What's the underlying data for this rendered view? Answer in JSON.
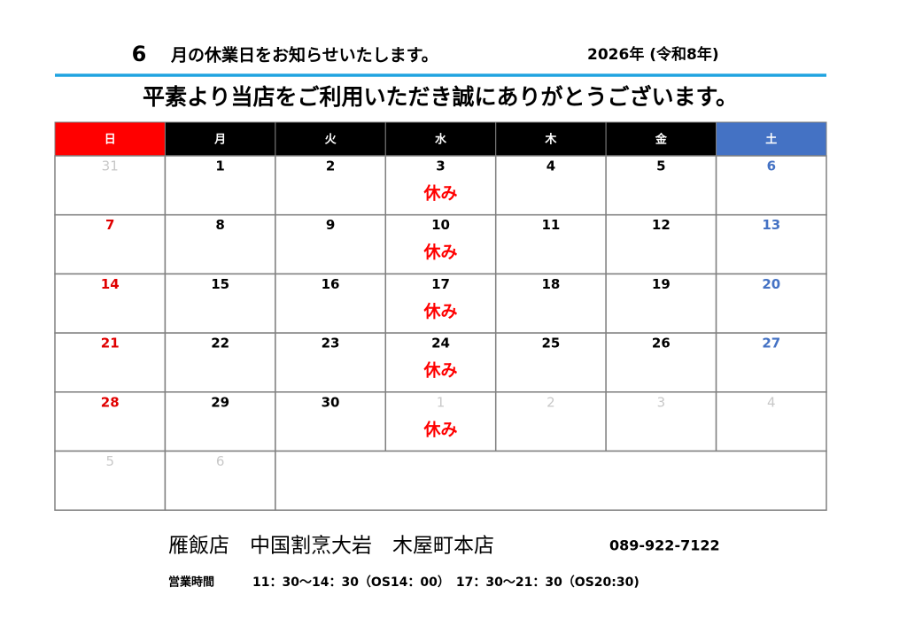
{
  "header": {
    "month": "6",
    "title": "月の休業日をお知らせいたします。",
    "year": "2026年 (令和8年)",
    "greeting": "平素より当店をご利用いただき誠にありがとうございます。"
  },
  "calendar": {
    "weekdays": [
      "日",
      "月",
      "火",
      "水",
      "木",
      "金",
      "土"
    ],
    "weeks": [
      [
        {
          "day": 31
        },
        {
          "day": 1
        },
        {
          "day": 2
        },
        {
          "day": 3,
          "note": "休み"
        },
        {
          "day": 4
        },
        {
          "day": 5
        },
        {
          "day": 6
        }
      ],
      [
        {
          "day": 7
        },
        {
          "day": 8
        },
        {
          "day": 9
        },
        {
          "day": 10,
          "note": "休み"
        },
        {
          "day": 11
        },
        {
          "day": 12
        },
        {
          "day": 13
        }
      ],
      [
        {
          "day": 14
        },
        {
          "day": 15
        },
        {
          "day": 16
        },
        {
          "day": 17,
          "note": "休み"
        },
        {
          "day": 18
        },
        {
          "day": 19
        },
        {
          "day": 20
        }
      ],
      [
        {
          "day": 21
        },
        {
          "day": 22
        },
        {
          "day": 23
        },
        {
          "day": 24,
          "note": "休み"
        },
        {
          "day": 25
        },
        {
          "day": 26
        },
        {
          "day": 27
        }
      ],
      [
        {
          "day": 28
        },
        {
          "day": 29
        },
        {
          "day": 30
        },
        {
          "day": 1,
          "note": "休み"
        },
        {
          "day": 2
        },
        {
          "day": 3
        },
        {
          "day": 4
        }
      ],
      [
        {
          "day": 5
        },
        {
          "day": 6
        }
      ]
    ]
  },
  "footer": {
    "shop": "雁飯店　中国割烹大岩　木屋町本店",
    "phone": "089-922-7122",
    "hours_label": "営業時間",
    "hours": "11：30～14：30（OS14：00）　17：30～21：30（OS20:30)"
  }
}
